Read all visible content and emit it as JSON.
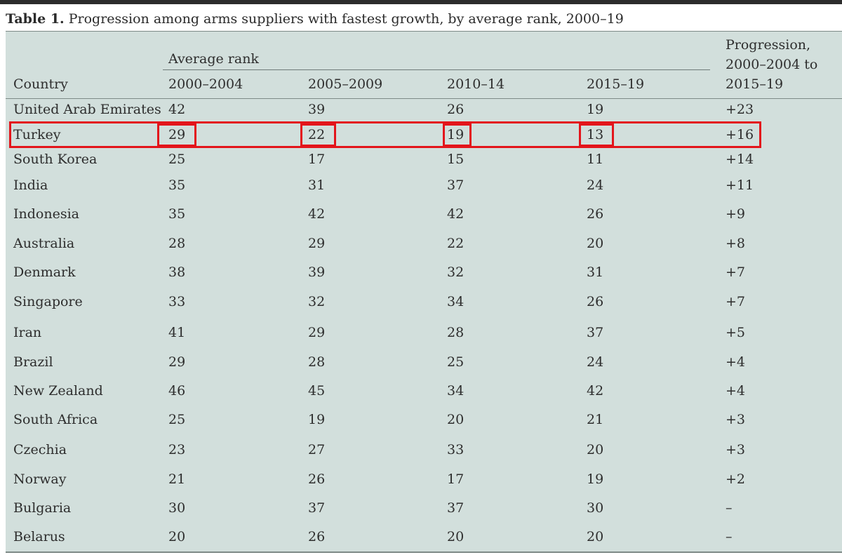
{
  "title": {
    "label": "Table 1.",
    "text": "Progression among arms suppliers with fastest growth, by average rank, 2000–19"
  },
  "table": {
    "country_header": "Country",
    "group_header": "Average rank",
    "columns": [
      "2000–2004",
      "2005–2009",
      "2010–14",
      "2015–19"
    ],
    "progression_header": [
      "Progression,",
      "2000–2004 to",
      "2015–19"
    ],
    "rows": [
      {
        "country": "United Arab Emirates",
        "ranks": [
          "42",
          "39",
          "26",
          "19"
        ],
        "progression": "+23"
      },
      {
        "country": "Turkey",
        "ranks": [
          "29",
          "22",
          "19",
          "13"
        ],
        "progression": "+16",
        "highlighted": true
      },
      {
        "country": "South Korea",
        "ranks": [
          "25",
          "17",
          "15",
          "11"
        ],
        "progression": "+14"
      },
      {
        "country": "India",
        "ranks": [
          "35",
          "31",
          "37",
          "24"
        ],
        "progression": "+11"
      },
      {
        "country": "Indonesia",
        "ranks": [
          "35",
          "42",
          "42",
          "26"
        ],
        "progression": "+9"
      },
      {
        "country": "Australia",
        "ranks": [
          "28",
          "29",
          "22",
          "20"
        ],
        "progression": "+8"
      },
      {
        "country": "Denmark",
        "ranks": [
          "38",
          "39",
          "32",
          "31"
        ],
        "progression": "+7"
      },
      {
        "country": "Singapore",
        "ranks": [
          "33",
          "32",
          "34",
          "26"
        ],
        "progression": "+7"
      },
      {
        "country": "Iran",
        "ranks": [
          "41",
          "29",
          "28",
          "37"
        ],
        "progression": "+5"
      },
      {
        "country": "Brazil",
        "ranks": [
          "29",
          "28",
          "25",
          "24"
        ],
        "progression": "+4"
      },
      {
        "country": "New Zealand",
        "ranks": [
          "46",
          "45",
          "34",
          "42"
        ],
        "progression": "+4"
      },
      {
        "country": "South Africa",
        "ranks": [
          "25",
          "19",
          "20",
          "21"
        ],
        "progression": "+3"
      },
      {
        "country": "Czechia",
        "ranks": [
          "23",
          "27",
          "33",
          "20"
        ],
        "progression": "+3"
      },
      {
        "country": "Norway",
        "ranks": [
          "21",
          "26",
          "17",
          "19"
        ],
        "progression": "+2"
      },
      {
        "country": "Bulgaria",
        "ranks": [
          "30",
          "37",
          "37",
          "30"
        ],
        "progression": "–"
      },
      {
        "country": "Belarus",
        "ranks": [
          "20",
          "26",
          "20",
          "20"
        ],
        "progression": "–"
      }
    ]
  },
  "colors": {
    "table_background": "#d2dfdc",
    "highlight": "#e3151b",
    "text": "#2d2d2d",
    "rule": "#7d8a87"
  }
}
